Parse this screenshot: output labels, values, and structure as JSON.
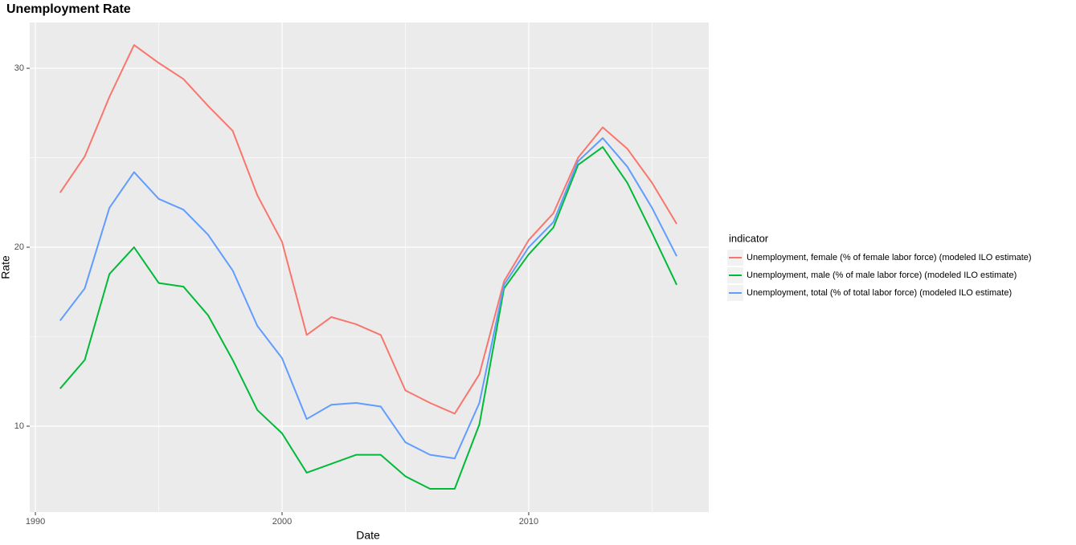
{
  "chart_data": {
    "type": "line",
    "title": "Unemployment Rate",
    "x_label": "Date",
    "y_label": "Rate",
    "x": [
      1991,
      1992,
      1993,
      1994,
      1995,
      1996,
      1997,
      1998,
      1999,
      2000,
      2001,
      2002,
      2003,
      2004,
      2005,
      2006,
      2007,
      2008,
      2009,
      2010,
      2011,
      2012,
      2013,
      2014,
      2015,
      2016
    ],
    "series": [
      {
        "name": "Unemployment, female (% of female labor force) (modeled ILO estimate)",
        "color": "#F8766D",
        "values": [
          23.05,
          25.07,
          28.4,
          31.3,
          30.3,
          29.4,
          27.9,
          26.5,
          22.9,
          20.3,
          15.1,
          16.1,
          15.7,
          15.1,
          12.0,
          11.3,
          10.7,
          12.9,
          18.1,
          20.4,
          21.9,
          25.0,
          26.7,
          25.5,
          23.6,
          21.3
        ]
      },
      {
        "name": "Unemployment, male (% of male labor force) (modeled ILO estimate)",
        "color": "#00BA38",
        "values": [
          12.1,
          13.7,
          18.5,
          20.0,
          18.0,
          17.8,
          16.2,
          13.7,
          10.9,
          9.6,
          7.4,
          7.9,
          8.4,
          8.4,
          7.2,
          6.5,
          6.5,
          10.1,
          17.7,
          19.6,
          21.1,
          24.6,
          25.6,
          23.6,
          20.8,
          17.9
        ]
      },
      {
        "name": "Unemployment, total (% of total labor force) (modeled ILO estimate)",
        "color": "#619CFF",
        "values": [
          15.9,
          17.7,
          22.2,
          24.2,
          22.7,
          22.1,
          20.7,
          18.7,
          15.6,
          13.8,
          10.4,
          11.2,
          11.3,
          11.1,
          9.1,
          8.4,
          8.2,
          11.3,
          17.9,
          20.0,
          21.4,
          24.8,
          26.1,
          24.5,
          22.2,
          19.5
        ]
      }
    ],
    "legend_title": "indicator",
    "legend": "right",
    "xlim": [
      1989.77,
      2017.3
    ],
    "xticks": [
      1990,
      2000,
      2010
    ],
    "ylim": [
      5.2,
      32.56
    ],
    "yticks": [
      10,
      20,
      30
    ],
    "grid": true
  }
}
